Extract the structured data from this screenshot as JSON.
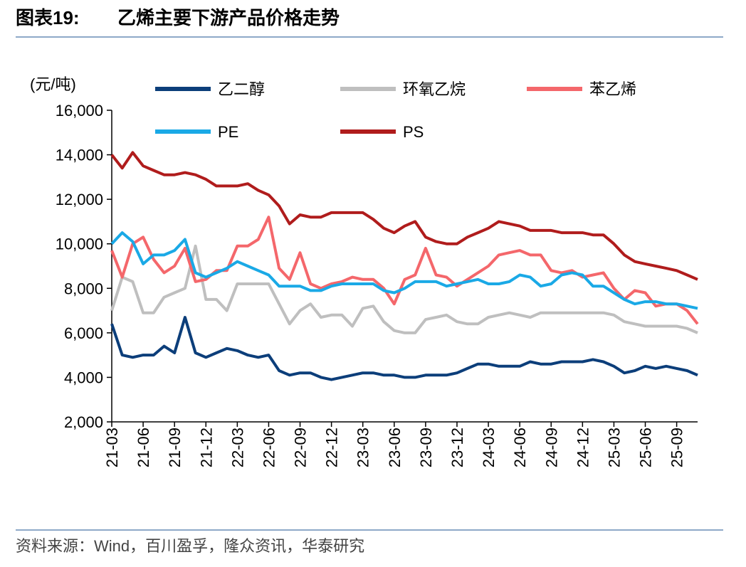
{
  "chart_data": {
    "type": "line",
    "label": "图表19:",
    "title": "乙烯主要下游产品价格走势",
    "y_label": "(元/吨)",
    "source": "资料来源：Wind，百川盈孚，隆众资讯，华泰研究",
    "categories": [
      "21-03",
      null,
      null,
      "21-06",
      null,
      null,
      "21-09",
      null,
      null,
      "21-12",
      null,
      null,
      "22-03",
      null,
      null,
      "22-06",
      null,
      null,
      "22-09",
      null,
      null,
      "22-12",
      null,
      null,
      "23-03",
      null,
      null,
      "23-06",
      null,
      null,
      "23-09",
      null,
      null,
      "23-12",
      null,
      null,
      "24-03",
      null,
      null,
      "24-06",
      null,
      null,
      "24-09",
      null,
      null,
      "24-12",
      null,
      null,
      "25-03",
      null,
      null,
      "25-06",
      null,
      null,
      "25-09",
      null,
      null
    ],
    "ylim": [
      2000,
      16000
    ],
    "yticks": [
      {
        "value": 2000,
        "label": "2,000"
      },
      {
        "value": 4000,
        "label": "4,000"
      },
      {
        "value": 6000,
        "label": "6,000"
      },
      {
        "value": 8000,
        "label": "8,000"
      },
      {
        "value": 10000,
        "label": "10,000"
      },
      {
        "value": 12000,
        "label": "12,000"
      },
      {
        "value": 14000,
        "label": "14,000"
      },
      {
        "value": 16000,
        "label": "16,000"
      }
    ],
    "series": [
      {
        "name": "乙二醇",
        "color": "#0c3e7a",
        "values": [
          6400,
          5000,
          4900,
          5000,
          5000,
          5400,
          5100,
          6700,
          5100,
          4900,
          5100,
          5300,
          5200,
          5000,
          4900,
          5000,
          4300,
          4100,
          4200,
          4200,
          4000,
          3900,
          4000,
          4100,
          4200,
          4200,
          4100,
          4100,
          4000,
          4000,
          4100,
          4100,
          4100,
          4200,
          4400,
          4600,
          4600,
          4500,
          4500,
          4500,
          4700,
          4600,
          4600,
          4700,
          4700,
          4700,
          4800,
          4700,
          4500,
          4200,
          4300,
          4500,
          4400,
          4500,
          4400,
          4300,
          4100
        ]
      },
      {
        "name": "环氧乙烷",
        "color": "#bfbfbf",
        "values": [
          7000,
          8500,
          8300,
          6900,
          6900,
          7600,
          7800,
          8000,
          9900,
          7500,
          7500,
          7000,
          8200,
          8200,
          8200,
          8200,
          7300,
          6400,
          7000,
          7300,
          6700,
          6800,
          6800,
          6300,
          7100,
          7200,
          6500,
          6100,
          6000,
          6000,
          6600,
          6700,
          6800,
          6500,
          6400,
          6400,
          6700,
          6800,
          6900,
          6800,
          6700,
          6900,
          6900,
          6900,
          6900,
          6900,
          6900,
          6900,
          6800,
          6500,
          6400,
          6300,
          6300,
          6300,
          6300,
          6200,
          6000
        ]
      },
      {
        "name": "苯乙烯",
        "color": "#f4676b",
        "values": [
          9700,
          8500,
          10000,
          10300,
          9300,
          8700,
          9000,
          9800,
          8300,
          8400,
          8800,
          8800,
          9900,
          9900,
          10200,
          11200,
          8900,
          8400,
          9600,
          8200,
          8000,
          8200,
          8300,
          8500,
          8400,
          8400,
          8000,
          7300,
          8400,
          8600,
          9800,
          8600,
          8500,
          8100,
          8400,
          8700,
          9000,
          9500,
          9600,
          9700,
          9500,
          9500,
          8800,
          8700,
          8800,
          8500,
          8600,
          8700,
          8000,
          7500,
          7900,
          7800,
          7200,
          7300,
          7300,
          7000,
          6400
        ]
      },
      {
        "name": "PE",
        "color": "#1aa9e6",
        "values": [
          10000,
          10500,
          10100,
          9100,
          9500,
          9500,
          9700,
          10200,
          8700,
          8500,
          8700,
          8900,
          9200,
          9000,
          8800,
          8600,
          8100,
          8100,
          8100,
          7900,
          7900,
          8100,
          8200,
          8200,
          8200,
          8200,
          7900,
          7800,
          8000,
          8300,
          8300,
          8300,
          8100,
          8200,
          8300,
          8400,
          8200,
          8200,
          8300,
          8600,
          8500,
          8100,
          8200,
          8600,
          8700,
          8600,
          8100,
          8100,
          7800,
          7500,
          7300,
          7400,
          7400,
          7300,
          7300,
          7200,
          7100
        ]
      },
      {
        "name": "PS",
        "color": "#b01c1c",
        "values": [
          14000,
          13400,
          14100,
          13500,
          13300,
          13100,
          13100,
          13200,
          13100,
          12900,
          12600,
          12600,
          12600,
          12700,
          12400,
          12200,
          11700,
          10900,
          11300,
          11200,
          11200,
          11400,
          11400,
          11400,
          11400,
          11100,
          10700,
          10500,
          10800,
          11000,
          10300,
          10100,
          10000,
          10000,
          10300,
          10500,
          10700,
          11000,
          10900,
          10800,
          10600,
          10600,
          10600,
          10500,
          10500,
          10500,
          10400,
          10400,
          10000,
          9500,
          9200,
          9100,
          9000,
          8900,
          8800,
          8600,
          8400
        ]
      }
    ]
  }
}
